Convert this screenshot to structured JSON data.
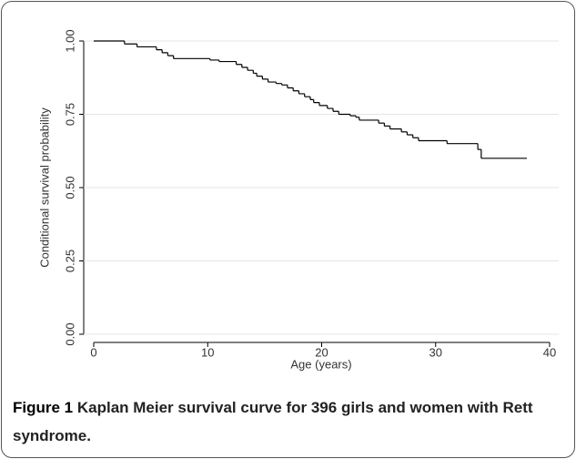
{
  "chart_data": {
    "type": "step",
    "xlabel": "Age (years)",
    "ylabel": "Conditional survival probability",
    "x": [
      0,
      2.7,
      3.8,
      5.5,
      6,
      6.5,
      7,
      10.2,
      11,
      12.5,
      13,
      13.5,
      14,
      14.3,
      14.8,
      15.3,
      16,
      16.5,
      17,
      17.5,
      18,
      18.5,
      19,
      19.3,
      19.8,
      20.5,
      21,
      21.5,
      22.5,
      23,
      23.3,
      25,
      25.5,
      26,
      27,
      27.5,
      28,
      28.5,
      31,
      33.7,
      34,
      38
    ],
    "values": [
      1.0,
      0.99,
      0.98,
      0.97,
      0.96,
      0.95,
      0.94,
      0.935,
      0.93,
      0.92,
      0.91,
      0.9,
      0.89,
      0.88,
      0.87,
      0.86,
      0.855,
      0.85,
      0.84,
      0.83,
      0.82,
      0.81,
      0.8,
      0.79,
      0.78,
      0.77,
      0.76,
      0.75,
      0.745,
      0.74,
      0.73,
      0.72,
      0.71,
      0.7,
      0.69,
      0.68,
      0.67,
      0.66,
      0.65,
      0.63,
      0.6,
      0.6
    ],
    "color": "#000000",
    "xlim": [
      0,
      40
    ],
    "xticks": [
      0,
      10,
      20,
      30,
      40
    ],
    "ylim": [
      0,
      1
    ],
    "yticks": [
      {
        "value": 0,
        "label": "0.00"
      },
      {
        "value": 0.25,
        "label": "0.25"
      },
      {
        "value": 0.5,
        "label": "0.50"
      },
      {
        "value": 0.75,
        "label": "0.75"
      },
      {
        "value": 1,
        "label": "1.00"
      }
    ],
    "grid": true
  },
  "caption": {
    "label": "Figure 1",
    "text": "Kaplan Meier survival curve for 396 girls and women with Rett syndrome."
  }
}
